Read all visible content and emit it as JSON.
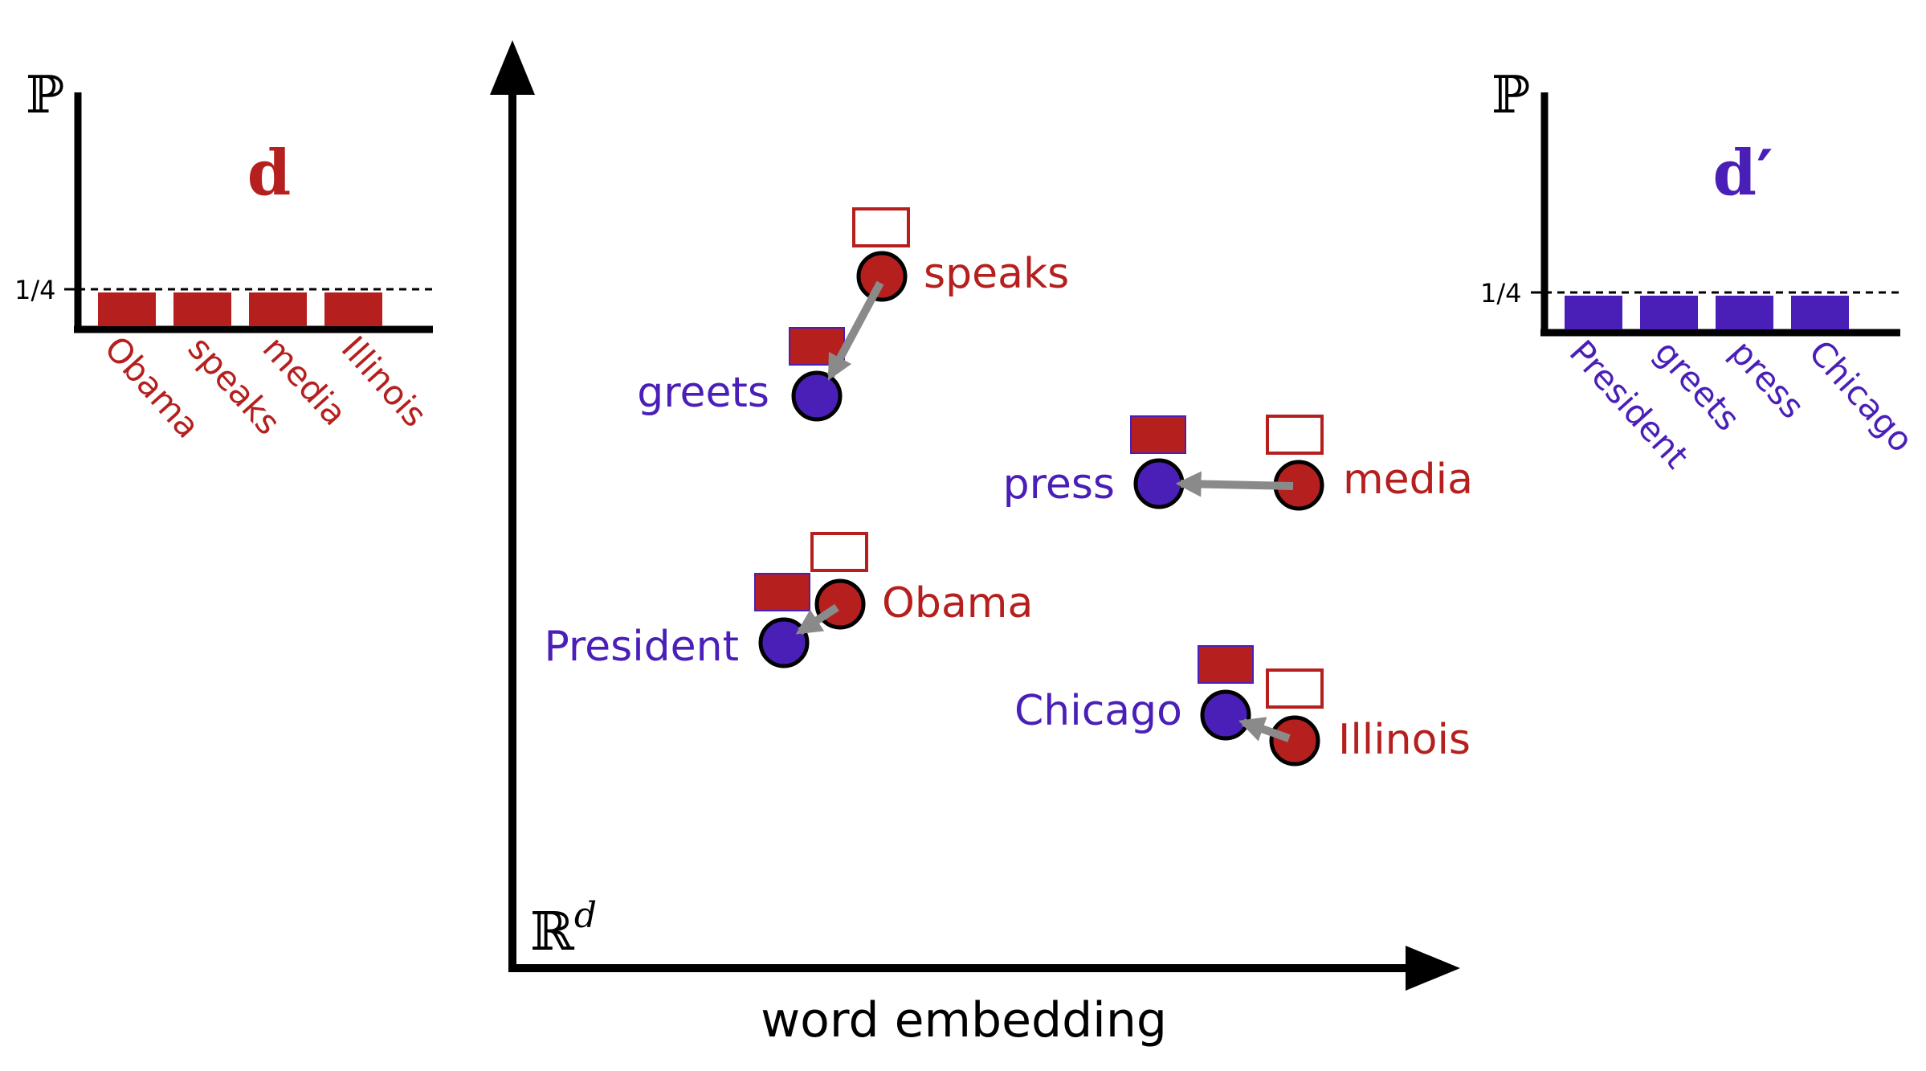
{
  "colors": {
    "red": "#b5201e",
    "blue": "#4a1fb8",
    "arrow": "#8a8a8a",
    "axis": "#000000"
  },
  "left_panel": {
    "y_axis_symbol": "ℙ",
    "title": "d",
    "tick_label": "1/4",
    "words": [
      "Obama",
      "speaks",
      "media",
      "Illinois"
    ]
  },
  "right_panel": {
    "y_axis_symbol": "ℙ",
    "title": "d′",
    "tick_label": "1/4",
    "words": [
      "President",
      "greets",
      "press",
      "Chicago"
    ]
  },
  "center": {
    "space_label_base": "ℝ",
    "space_label_sup": "d",
    "x_label": "word embedding",
    "source_words": [
      "speaks",
      "media",
      "Obama",
      "Illinois"
    ],
    "target_words": [
      "greets",
      "press",
      "President",
      "Chicago"
    ]
  }
}
